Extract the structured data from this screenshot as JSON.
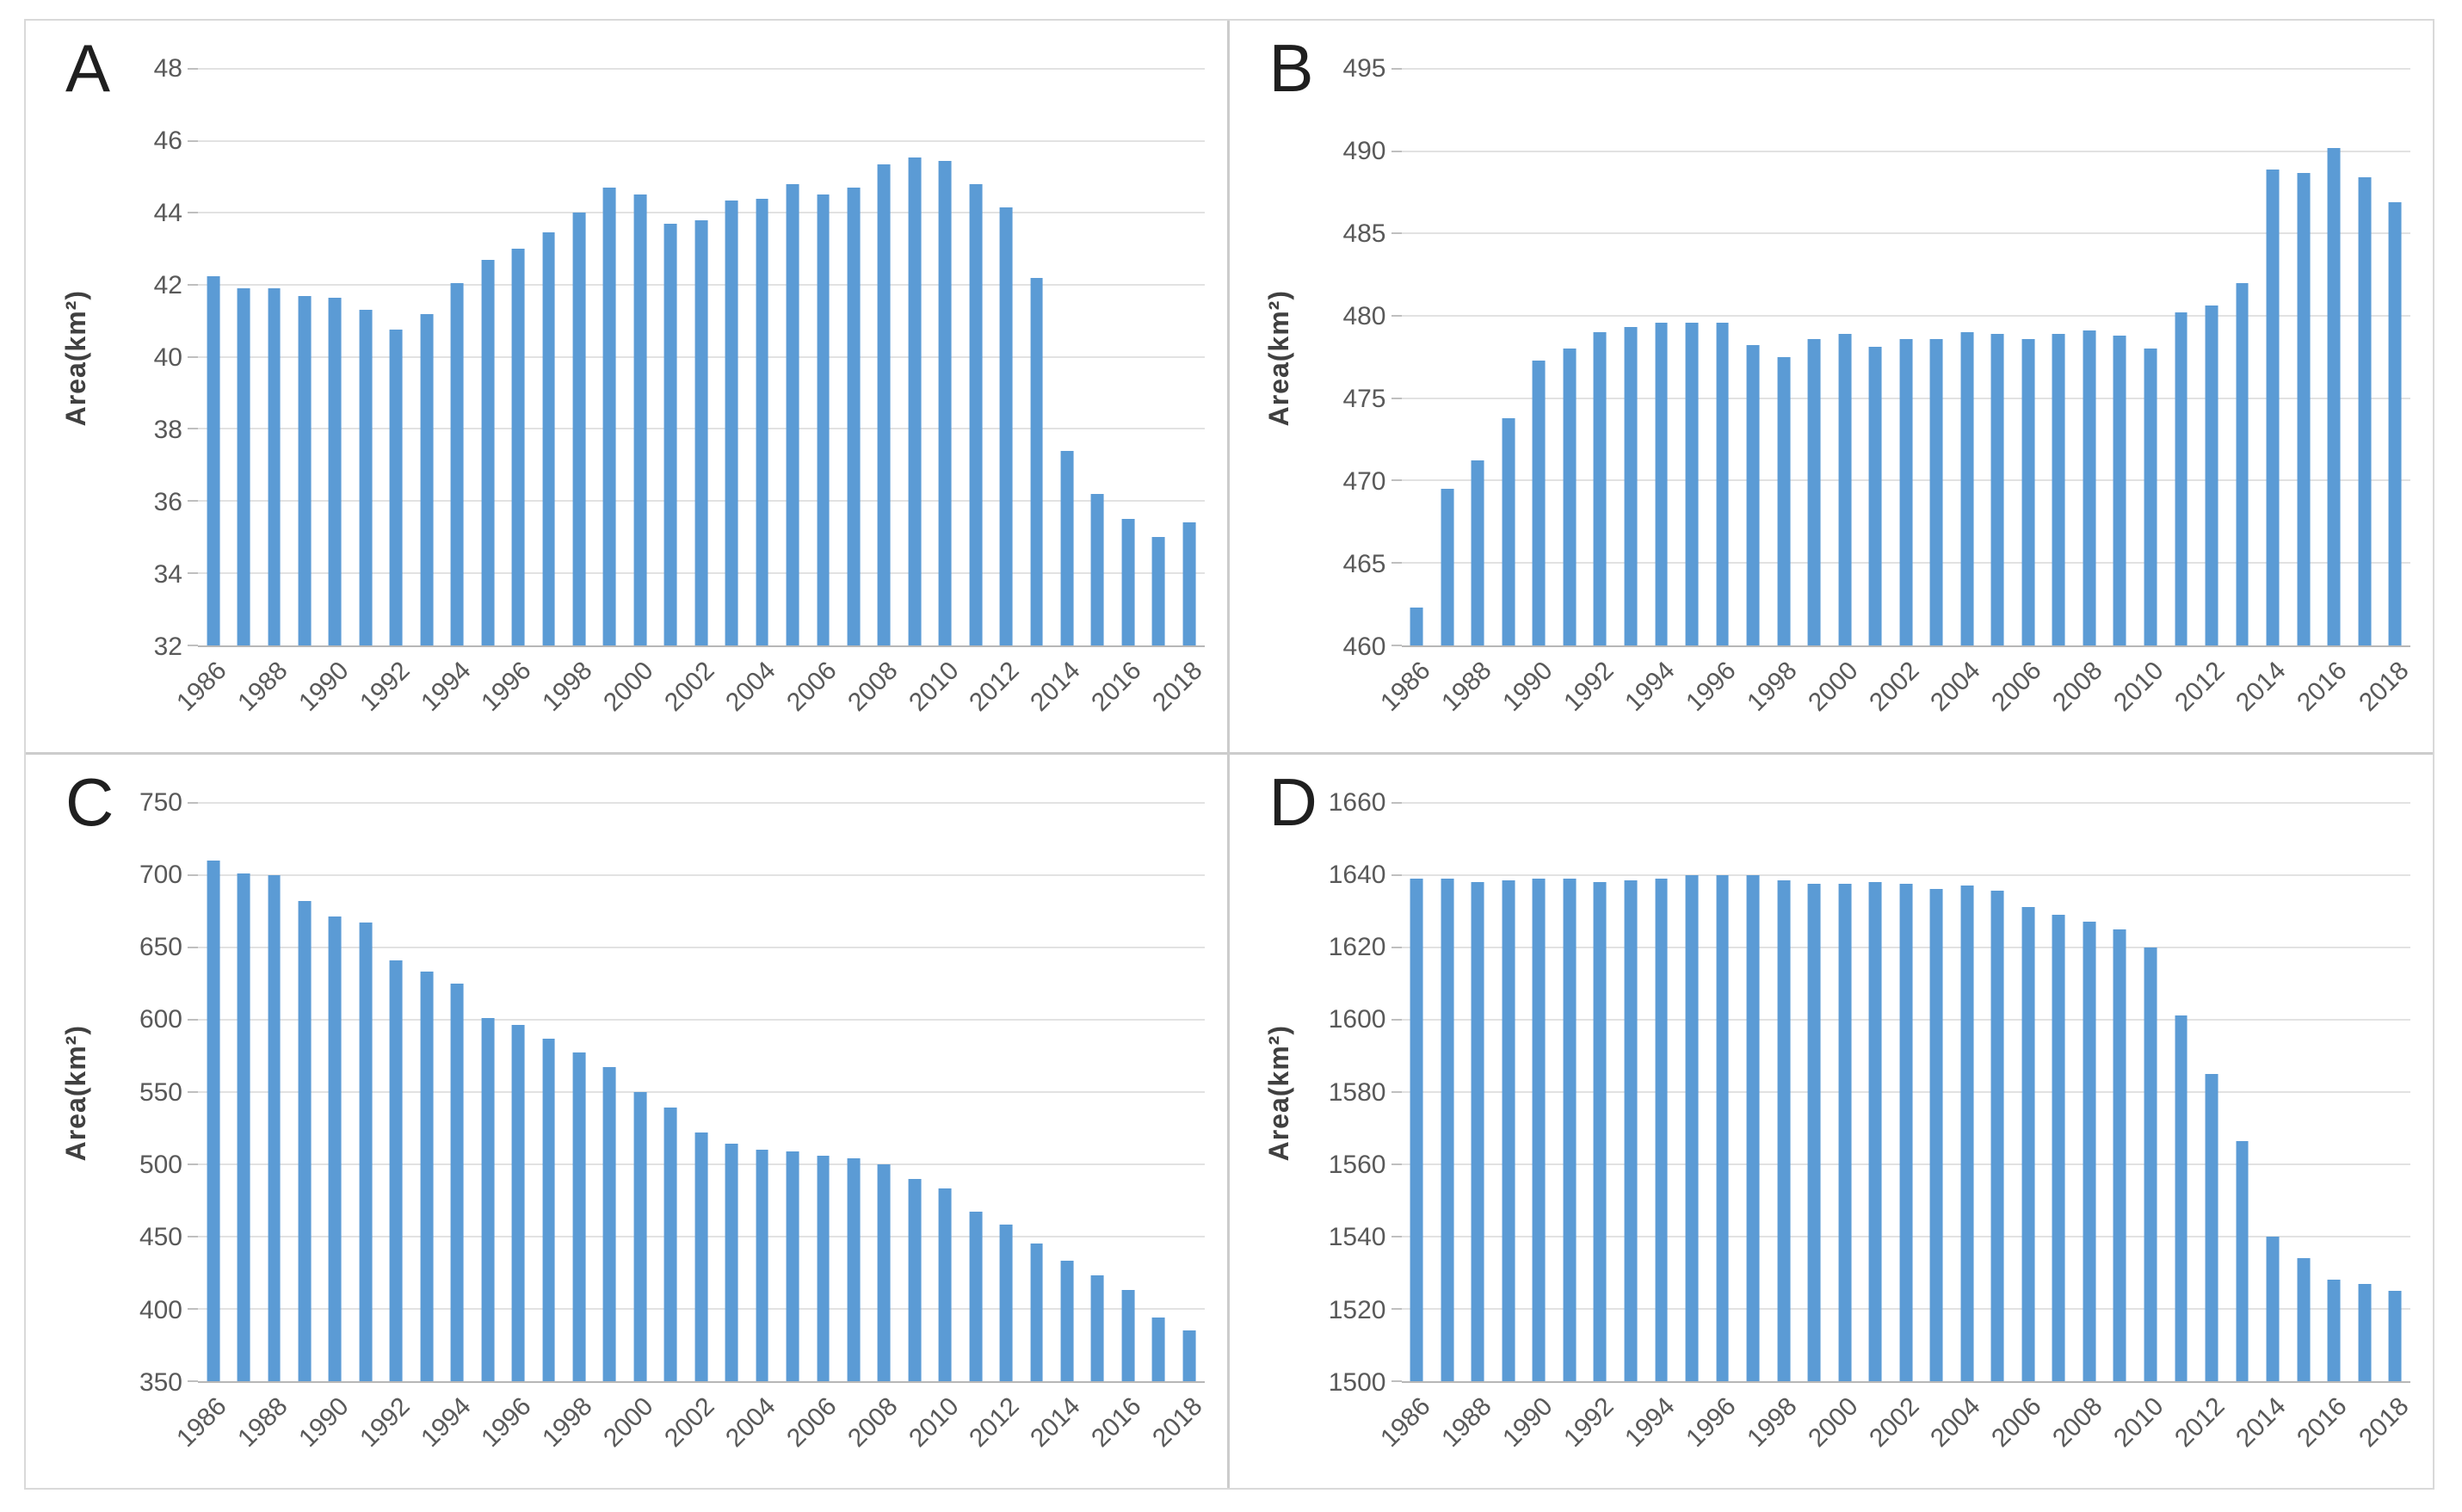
{
  "figure": {
    "type": "four-panel-bar-figure",
    "background": "#ffffff",
    "border_color": "#d9d9d9",
    "divider_color": "#cccccc"
  },
  "colors": {
    "bar": "#5B9BD5",
    "gridline": "#e2e2e2",
    "axis_line": "#b7b7b7",
    "tick_text": "#595959",
    "axis_title_text": "#404040",
    "panel_letter_text": "#1f1f1f"
  },
  "chart_data": [
    {
      "id": "A",
      "label": "A",
      "type": "bar",
      "ylabel": "Area(km²)",
      "ylim": [
        32,
        48
      ],
      "ystep": 2,
      "grid": true,
      "legend": "none",
      "bar_color": "#5B9BD5",
      "x": [
        1986,
        1987,
        1988,
        1989,
        1990,
        1991,
        1992,
        1993,
        1994,
        1995,
        1996,
        1997,
        1998,
        1999,
        2000,
        2001,
        2002,
        2003,
        2004,
        2005,
        2006,
        2007,
        2008,
        2009,
        2010,
        2011,
        2012,
        2013,
        2014,
        2015,
        2016,
        2017,
        2018
      ],
      "xticks": [
        "1986",
        "1988",
        "1990",
        "1992",
        "1994",
        "1996",
        "1998",
        "2000",
        "2002",
        "2004",
        "2006",
        "2008",
        "2010",
        "2012",
        "2014",
        "2016",
        "2018"
      ],
      "yticks": [
        "32",
        "34",
        "36",
        "38",
        "40",
        "42",
        "44",
        "46",
        "48"
      ],
      "values": [
        42.25,
        41.9,
        41.9,
        41.7,
        41.65,
        41.3,
        40.75,
        41.2,
        42.05,
        42.7,
        43.0,
        43.45,
        44.0,
        44.7,
        44.5,
        43.7,
        43.8,
        44.35,
        44.4,
        44.8,
        44.5,
        44.7,
        45.35,
        45.55,
        45.45,
        44.8,
        44.15,
        42.2,
        37.4,
        36.2,
        35.5,
        35.0,
        35.4
      ]
    },
    {
      "id": "B",
      "label": "B",
      "type": "bar",
      "ylabel": "Area(km²)",
      "ylim": [
        460,
        495
      ],
      "ystep": 5,
      "grid": true,
      "legend": "none",
      "bar_color": "#5B9BD5",
      "x": [
        1986,
        1987,
        1988,
        1989,
        1990,
        1991,
        1992,
        1993,
        1994,
        1995,
        1996,
        1997,
        1998,
        1999,
        2000,
        2001,
        2002,
        2003,
        2004,
        2005,
        2006,
        2007,
        2008,
        2009,
        2010,
        2011,
        2012,
        2013,
        2014,
        2015,
        2016,
        2017,
        2018
      ],
      "xticks": [
        "1986",
        "1988",
        "1990",
        "1992",
        "1994",
        "1996",
        "1998",
        "2000",
        "2002",
        "2004",
        "2006",
        "2008",
        "2010",
        "2012",
        "2014",
        "2016",
        "2018"
      ],
      "yticks": [
        "460",
        "465",
        "470",
        "475",
        "480",
        "485",
        "490",
        "495"
      ],
      "values": [
        462.3,
        469.5,
        471.2,
        473.8,
        477.3,
        478.0,
        479.0,
        479.3,
        479.6,
        479.6,
        479.6,
        478.2,
        477.5,
        478.6,
        478.9,
        478.1,
        478.6,
        478.6,
        479.0,
        478.9,
        478.6,
        478.9,
        479.1,
        478.8,
        478.0,
        480.2,
        480.6,
        482.0,
        488.9,
        488.7,
        490.2,
        488.4,
        486.9
      ]
    },
    {
      "id": "C",
      "label": "C",
      "type": "bar",
      "ylabel": "Area(km²)",
      "ylim": [
        350,
        750
      ],
      "ystep": 50,
      "grid": true,
      "legend": "none",
      "bar_color": "#5B9BD5",
      "x": [
        1986,
        1987,
        1988,
        1989,
        1990,
        1991,
        1992,
        1993,
        1994,
        1995,
        1996,
        1997,
        1998,
        1999,
        2000,
        2001,
        2002,
        2003,
        2004,
        2005,
        2006,
        2007,
        2008,
        2009,
        2010,
        2011,
        2012,
        2013,
        2014,
        2015,
        2016,
        2017,
        2018
      ],
      "xticks": [
        "1986",
        "1988",
        "1990",
        "1992",
        "1994",
        "1996",
        "1998",
        "2000",
        "2002",
        "2004",
        "2006",
        "2008",
        "2010",
        "2012",
        "2014",
        "2016",
        "2018"
      ],
      "yticks": [
        "350",
        "400",
        "450",
        "500",
        "550",
        "600",
        "650",
        "700",
        "750"
      ],
      "values": [
        710,
        701,
        700,
        682,
        671,
        667,
        641,
        633,
        625,
        601,
        596,
        587,
        577,
        567,
        550,
        539,
        522,
        514,
        510,
        509,
        506,
        504,
        500,
        490,
        483,
        467,
        458,
        445,
        433,
        423,
        413,
        394,
        385
      ]
    },
    {
      "id": "D",
      "label": "D",
      "type": "bar",
      "ylabel": "Area(km²)",
      "ylim": [
        1500,
        1660
      ],
      "ystep": 20,
      "grid": true,
      "legend": "none",
      "bar_color": "#5B9BD5",
      "x": [
        1986,
        1987,
        1988,
        1989,
        1990,
        1991,
        1992,
        1993,
        1994,
        1995,
        1996,
        1997,
        1998,
        1999,
        2000,
        2001,
        2002,
        2003,
        2004,
        2005,
        2006,
        2007,
        2008,
        2009,
        2010,
        2011,
        2012,
        2013,
        2014,
        2015,
        2016,
        2017,
        2018
      ],
      "xticks": [
        "1986",
        "1988",
        "1990",
        "1992",
        "1994",
        "1996",
        "1998",
        "2000",
        "2002",
        "2004",
        "2006",
        "2008",
        "2010",
        "2012",
        "2014",
        "2016",
        "2018"
      ],
      "yticks": [
        "1500",
        "1520",
        "1540",
        "1560",
        "1580",
        "1600",
        "1620",
        "1640",
        "1660"
      ],
      "values": [
        1639,
        1639,
        1638,
        1638.5,
        1639,
        1639,
        1638,
        1638.5,
        1639,
        1640,
        1640,
        1640,
        1638.5,
        1637.5,
        1637.5,
        1638,
        1637.5,
        1636,
        1637,
        1635.5,
        1631,
        1629,
        1627,
        1625,
        1620,
        1601,
        1585,
        1566.5,
        1540,
        1534,
        1528,
        1527,
        1525
      ]
    }
  ]
}
